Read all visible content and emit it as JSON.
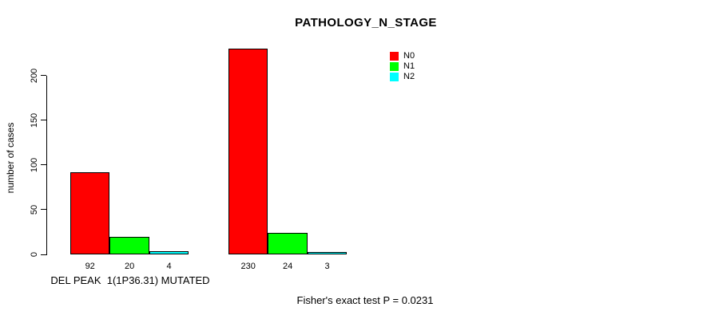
{
  "title": "PATHOLOGY_N_STAGE",
  "y_axis": {
    "label": "number of cases",
    "ticks": [
      "0",
      "50",
      "100",
      "150",
      "200"
    ]
  },
  "legend": [
    {
      "label": "N0",
      "color": "#FF0000"
    },
    {
      "label": "N1",
      "color": "#00FF00"
    },
    {
      "label": "N2",
      "color": "#00FFFF"
    }
  ],
  "footer": {
    "annotation": "Fisher's exact test P = 0.0231"
  },
  "chart_data": {
    "type": "bar",
    "title": "PATHOLOGY_N_STAGE",
    "xlabel": "",
    "ylabel": "number of cases",
    "ylim": [
      0,
      235
    ],
    "yticks": [
      0,
      50,
      100,
      150,
      200
    ],
    "grid": false,
    "legend_position": "top-right",
    "series_names": [
      "N0",
      "N1",
      "N2"
    ],
    "colors": [
      "#FF0000",
      "#00FF00",
      "#00FFFF"
    ],
    "groups": [
      {
        "label": "DEL PEAK  1(1P36.31) MUTATED",
        "values": [
          92,
          20,
          4
        ]
      },
      {
        "label": "",
        "values": [
          230,
          24,
          3
        ]
      }
    ],
    "annotation": "Fisher's exact test P = 0.0231"
  }
}
